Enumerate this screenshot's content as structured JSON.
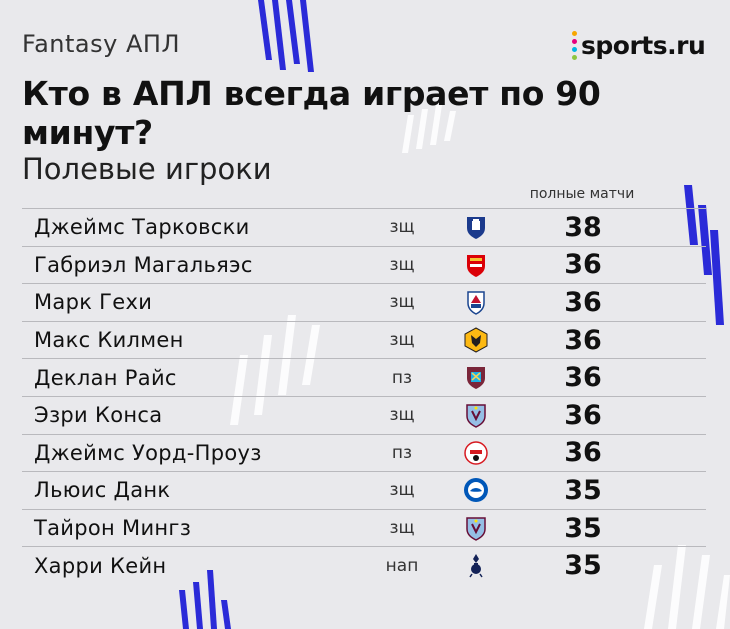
{
  "header": {
    "kicker": "Fantasy АПЛ",
    "title": "Кто в АПЛ всегда играет по 90 минут?",
    "subtitle": "Полевые игроки",
    "column_label": "полные матчи"
  },
  "brand": {
    "name": "sports.ru",
    "dot_colors": [
      "#f7a600",
      "#e5007d",
      "#00b5e2",
      "#8dc63f"
    ]
  },
  "colors": {
    "background": "#e9e9ec",
    "accent": "#2b2bd8"
  },
  "rows": [
    {
      "name": "Джеймс Тарковски",
      "position": "зщ",
      "club_icon": "everton-crest-icon",
      "full_matches": "38"
    },
    {
      "name": "Габриэл Магальяэс",
      "position": "зщ",
      "club_icon": "arsenal-crest-icon",
      "full_matches": "36"
    },
    {
      "name": "Марк Гехи",
      "position": "зщ",
      "club_icon": "crystal-palace-crest-icon",
      "full_matches": "36"
    },
    {
      "name": "Макс Килмен",
      "position": "зщ",
      "club_icon": "wolves-crest-icon",
      "full_matches": "36"
    },
    {
      "name": "Деклан Райс",
      "position": "пз",
      "club_icon": "west-ham-crest-icon",
      "full_matches": "36"
    },
    {
      "name": "Эзри Конса",
      "position": "зщ",
      "club_icon": "aston-villa-crest-icon",
      "full_matches": "36"
    },
    {
      "name": "Джеймс Уорд-Проуз",
      "position": "пз",
      "club_icon": "southampton-crest-icon",
      "full_matches": "36"
    },
    {
      "name": "Льюис Данк",
      "position": "зщ",
      "club_icon": "brighton-crest-icon",
      "full_matches": "35"
    },
    {
      "name": "Тайрон Мингз",
      "position": "зщ",
      "club_icon": "aston-villa-crest-icon",
      "full_matches": "35"
    },
    {
      "name": "Харри Кейн",
      "position": "нап",
      "club_icon": "tottenham-crest-icon",
      "full_matches": "35"
    }
  ]
}
